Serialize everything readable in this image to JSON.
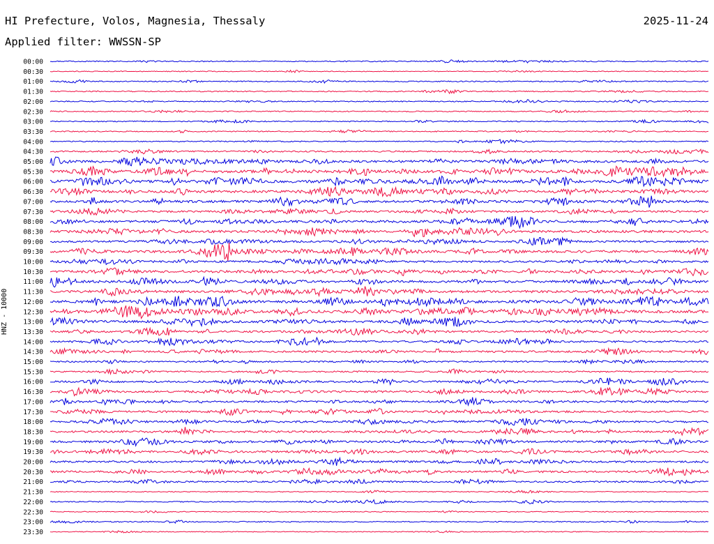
{
  "header": {
    "title": "HI Prefecture, Volos, Magnesia, Thessaly",
    "date": "2025-11-24",
    "filter_label": "Applied filter:",
    "filter_value": "WWSSN-SP",
    "channel_label": "HNZ - 10000"
  },
  "colors": {
    "even_trace": "#0000dd",
    "odd_trace": "#ee1144",
    "text": "#000000",
    "background": "#ffffff"
  },
  "chart_data": {
    "type": "line",
    "title": "HI Prefecture, Volos, Magnesia, Thessaly",
    "ylabel": "HNZ - 10000",
    "xlabel": "",
    "trace_minutes": 30,
    "rows": [
      {
        "time": "00:00",
        "activity": 1
      },
      {
        "time": "00:30",
        "activity": 0.5
      },
      {
        "time": "01:00",
        "activity": 1
      },
      {
        "time": "01:30",
        "activity": 1
      },
      {
        "time": "02:00",
        "activity": 1
      },
      {
        "time": "02:30",
        "activity": 1
      },
      {
        "time": "03:00",
        "activity": 1
      },
      {
        "time": "03:30",
        "activity": 1
      },
      {
        "time": "04:00",
        "activity": 1
      },
      {
        "time": "04:30",
        "activity": 2
      },
      {
        "time": "05:00",
        "activity": 4
      },
      {
        "time": "05:30",
        "activity": 5
      },
      {
        "time": "06:00",
        "activity": 5
      },
      {
        "time": "06:30",
        "activity": 4
      },
      {
        "time": "07:00",
        "activity": 4
      },
      {
        "time": "07:30",
        "activity": 3
      },
      {
        "time": "08:00",
        "activity": 4
      },
      {
        "time": "08:30",
        "activity": 4
      },
      {
        "time": "09:00",
        "activity": 3
      },
      {
        "time": "09:30",
        "activity": 4
      },
      {
        "time": "10:00",
        "activity": 3
      },
      {
        "time": "10:30",
        "activity": 4
      },
      {
        "time": "11:00",
        "activity": 4
      },
      {
        "time": "11:30",
        "activity": 4
      },
      {
        "time": "12:00",
        "activity": 5
      },
      {
        "time": "12:30",
        "activity": 5
      },
      {
        "time": "13:00",
        "activity": 4
      },
      {
        "time": "13:30",
        "activity": 3
      },
      {
        "time": "14:00",
        "activity": 3
      },
      {
        "time": "14:30",
        "activity": 3
      },
      {
        "time": "15:00",
        "activity": 2
      },
      {
        "time": "15:30",
        "activity": 2
      },
      {
        "time": "16:00",
        "activity": 3
      },
      {
        "time": "16:30",
        "activity": 3
      },
      {
        "time": "17:00",
        "activity": 3
      },
      {
        "time": "17:30",
        "activity": 3
      },
      {
        "time": "18:00",
        "activity": 3
      },
      {
        "time": "18:30",
        "activity": 3
      },
      {
        "time": "19:00",
        "activity": 3
      },
      {
        "time": "19:30",
        "activity": 3
      },
      {
        "time": "20:00",
        "activity": 3
      },
      {
        "time": "20:30",
        "activity": 3
      },
      {
        "time": "21:00",
        "activity": 2
      },
      {
        "time": "21:30",
        "activity": 0.5
      },
      {
        "time": "22:00",
        "activity": 1
      },
      {
        "time": "22:30",
        "activity": 0.5
      },
      {
        "time": "23:00",
        "activity": 1
      },
      {
        "time": "23:30",
        "activity": 0.5
      }
    ]
  }
}
